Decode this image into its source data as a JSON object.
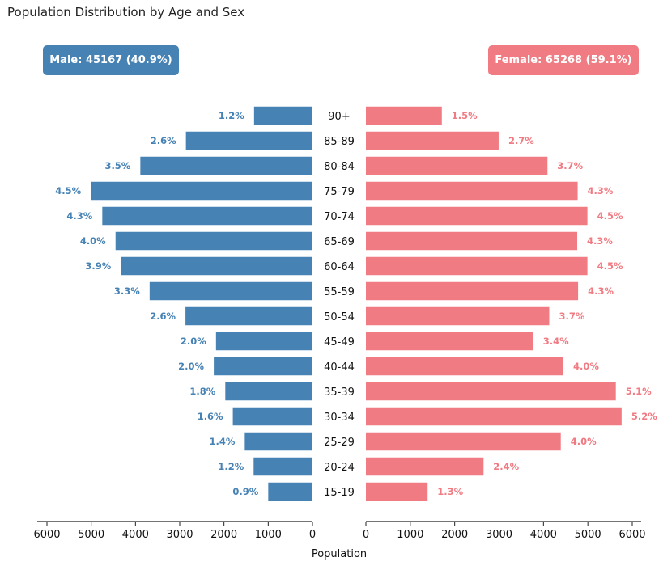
{
  "title": "Population Distribution by Age and Sex",
  "colors": {
    "male": "#4682b4",
    "female": "#f07b82",
    "axis": "#222222"
  },
  "male_box": {
    "label": "Male",
    "total": "45167",
    "pct": "40.9%"
  },
  "female_box": {
    "label": "Female",
    "total": "65268",
    "pct": "59.1%"
  },
  "chart_data": {
    "type": "bar",
    "orientation": "horizontal-population-pyramid",
    "title": "Population Distribution by Age and Sex",
    "xlabel": "Population",
    "ylabel": "",
    "xlim": [
      0,
      6000
    ],
    "x_ticks": [
      0,
      1000,
      2000,
      3000,
      4000,
      5000,
      6000
    ],
    "categories": [
      "90+",
      "85-89",
      "80-84",
      "75-79",
      "70-74",
      "65-69",
      "60-64",
      "55-59",
      "50-54",
      "45-49",
      "40-44",
      "35-39",
      "30-34",
      "25-29",
      "20-24",
      "15-19"
    ],
    "series": [
      {
        "name": "Male",
        "values": [
          1320,
          2860,
          3890,
          5010,
          4750,
          4450,
          4330,
          3680,
          2870,
          2180,
          2230,
          1970,
          1800,
          1530,
          1330,
          1000
        ],
        "labels": [
          "1.2%",
          "2.6%",
          "3.5%",
          "4.5%",
          "4.3%",
          "4.0%",
          "3.9%",
          "3.3%",
          "2.6%",
          "2.0%",
          "2.0%",
          "1.8%",
          "1.6%",
          "1.4%",
          "1.2%",
          "0.9%"
        ]
      },
      {
        "name": "Female",
        "values": [
          1710,
          2990,
          4090,
          4770,
          4990,
          4760,
          4990,
          4780,
          4130,
          3770,
          4450,
          5630,
          5760,
          4390,
          2650,
          1390
        ],
        "labels": [
          "1.5%",
          "2.7%",
          "3.7%",
          "4.3%",
          "4.5%",
          "4.3%",
          "4.5%",
          "4.3%",
          "3.7%",
          "3.4%",
          "4.0%",
          "5.1%",
          "5.2%",
          "4.0%",
          "2.4%",
          "1.3%"
        ]
      }
    ],
    "grid": false,
    "legend": "none"
  }
}
